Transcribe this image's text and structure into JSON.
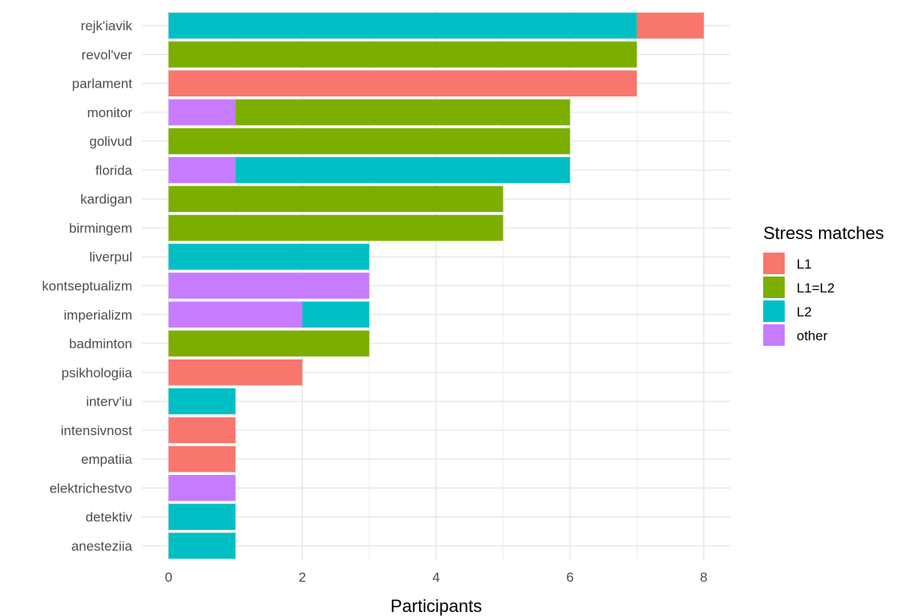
{
  "chart_data": {
    "type": "bar",
    "orientation": "horizontal",
    "stacked": true,
    "categories": [
      "rejk'iavik",
      "revol'ver",
      "parlament",
      "monitor",
      "golivud",
      "florida",
      "kardigan",
      "birmingem",
      "liverpul",
      "kontseptualizm",
      "imperializm",
      "badminton",
      "psikhologiia",
      "interv'iu",
      "intensivnost",
      "empatiia",
      "elektrichestvo",
      "detektiv",
      "anesteziia"
    ],
    "series": [
      {
        "name": "L1",
        "color": "#F8766D",
        "values": [
          1,
          0,
          7,
          0,
          0,
          0,
          0,
          0,
          0,
          0,
          0,
          0,
          2,
          0,
          1,
          1,
          0,
          0,
          0
        ]
      },
      {
        "name": "L1=L2",
        "color": "#7CAE00",
        "values": [
          0,
          7,
          0,
          5,
          6,
          0,
          5,
          5,
          0,
          0,
          0,
          3,
          0,
          0,
          0,
          0,
          0,
          0,
          0
        ]
      },
      {
        "name": "L2",
        "color": "#00BFC4",
        "values": [
          7,
          0,
          0,
          0,
          0,
          5,
          0,
          0,
          3,
          0,
          1,
          0,
          0,
          1,
          0,
          0,
          0,
          1,
          1
        ]
      },
      {
        "name": "other",
        "color": "#C77CFF",
        "values": [
          0,
          0,
          0,
          1,
          0,
          1,
          0,
          0,
          0,
          3,
          2,
          0,
          0,
          0,
          0,
          0,
          1,
          0,
          0
        ]
      }
    ],
    "stack_order": [
      "other",
      "L2",
      "L1=L2",
      "L1"
    ],
    "xlabel": "Participants",
    "ylabel": "",
    "xlim": [
      -0.4,
      8.4
    ],
    "xticks": [
      0,
      2,
      4,
      6,
      8
    ],
    "grid": true,
    "legend": {
      "title": "Stress matches",
      "position": "right"
    }
  }
}
